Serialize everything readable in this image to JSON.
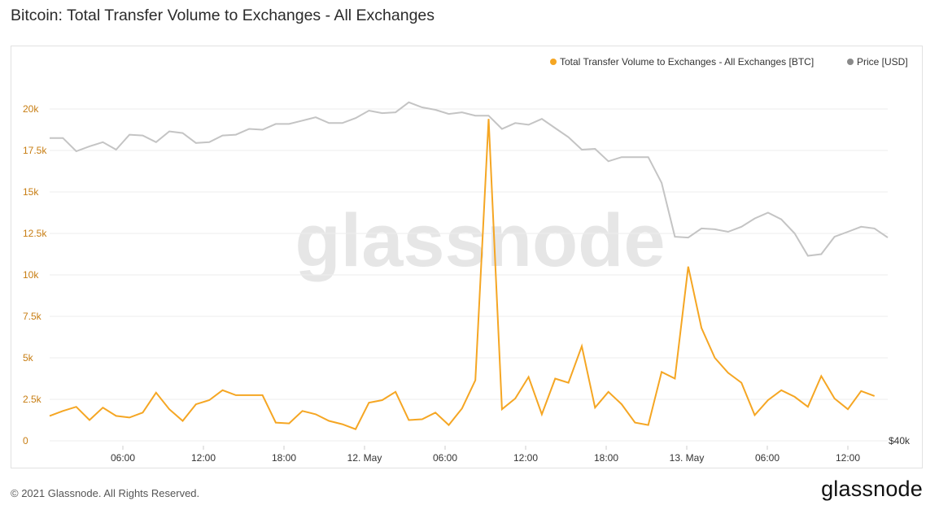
{
  "page": {
    "title": "Bitcoin: Total Transfer Volume to Exchanges - All Exchanges",
    "footer": "© 2021 Glassnode. All Rights Reserved.",
    "brand": "glassnode",
    "watermark": "glassnode"
  },
  "colors": {
    "volume": "#f5a623",
    "price": "#8a8a8a",
    "price_line": "#c4c4c4",
    "grid": "#eeeeee",
    "axis_text": "#c77d12"
  },
  "chart_data": {
    "type": "line",
    "title": "Bitcoin: Total Transfer Volume to Exchanges - All Exchanges",
    "legend_position": "top-right",
    "grid": true,
    "x_ticks": [
      "06:00",
      "12:00",
      "18:00",
      "12. May",
      "06:00",
      "12:00",
      "18:00",
      "13. May",
      "06:00",
      "12:00"
    ],
    "y_left": {
      "ticks": [
        "0",
        "2.5k",
        "5k",
        "7.5k",
        "10k",
        "12.5k",
        "15k",
        "17.5k",
        "20k"
      ],
      "range": [
        0,
        20000
      ]
    },
    "y_right": {
      "ticks": [
        "$40k"
      ]
    },
    "series": [
      {
        "name": "Total Transfer Volume to Exchanges - All Exchanges [BTC]",
        "axis": "left",
        "values": [
          1500,
          1800,
          2050,
          1250,
          2000,
          1500,
          1400,
          1700,
          2900,
          1900,
          1200,
          2200,
          2450,
          3050,
          2750,
          2750,
          2750,
          1100,
          1050,
          1800,
          1600,
          1200,
          1000,
          700,
          2300,
          2450,
          2950,
          1250,
          1300,
          1700,
          950,
          1950,
          3650,
          19400,
          1900,
          2550,
          3850,
          1600,
          3750,
          3500,
          5700,
          2000,
          2950,
          2200,
          1100,
          950,
          4150,
          3750,
          10500,
          6800,
          5000,
          4100,
          3500,
          1550,
          2450,
          3050,
          2650,
          2050,
          3900,
          2550,
          1900,
          3000,
          2700
        ]
      },
      {
        "name": "Price [USD]",
        "axis": "right",
        "values": [
          18250,
          18250,
          17450,
          17750,
          18000,
          17550,
          18450,
          18400,
          18000,
          18650,
          18550,
          17950,
          18000,
          18400,
          18450,
          18800,
          18750,
          19100,
          19100,
          19300,
          19500,
          19150,
          19150,
          19450,
          19900,
          19750,
          19800,
          20400,
          20100,
          19950,
          19700,
          19800,
          19600,
          19600,
          18800,
          19150,
          19050,
          19400,
          18850,
          18300,
          17550,
          17600,
          16850,
          17100,
          17100,
          17100,
          15550,
          12300,
          12250,
          12800,
          12750,
          12600,
          12900,
          13400,
          13750,
          13350,
          12500,
          11150,
          11250,
          12300,
          12600,
          12900,
          12800,
          12250
        ]
      }
    ]
  }
}
